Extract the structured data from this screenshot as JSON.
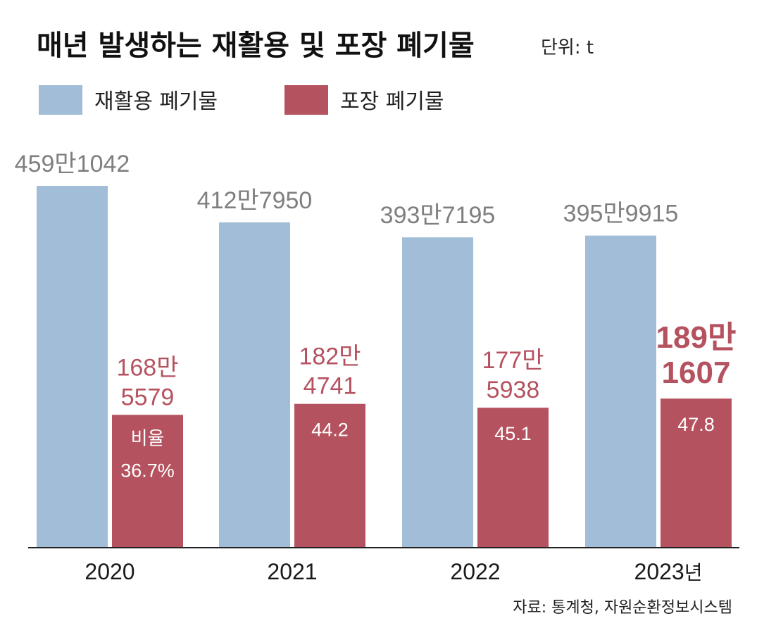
{
  "header": {
    "title": "매년 발생하는 재활용 및 포장 폐기물",
    "unit": "단위: t"
  },
  "colors": {
    "recycle": "#a1bdd7",
    "packaging": "#b5525f",
    "recycle_label": "#7f7f7f",
    "axis": "#222222"
  },
  "chart_data": {
    "type": "bar",
    "title": "매년 발생하는 재활용 및 포장 폐기물",
    "unit_label": "단위: t",
    "categories": [
      "2020",
      "2021",
      "2022",
      "2023"
    ],
    "category_suffix_last": "년",
    "ylim": [
      0,
      5000000
    ],
    "series": [
      {
        "name": "재활용 폐기물",
        "values": [
          4591042,
          4127950,
          3937195,
          3959915
        ],
        "labels": [
          "459만1042",
          "412만7950",
          "393만7195",
          "395만9915"
        ]
      },
      {
        "name": "포장 폐기물",
        "values": [
          1685579,
          1824741,
          1775938,
          1891607
        ],
        "labels": [
          [
            "168만",
            "5579"
          ],
          [
            "182만",
            "4741"
          ],
          [
            "177만",
            "5938"
          ],
          [
            "189만",
            "1607"
          ]
        ]
      }
    ],
    "ratio_title": "비율",
    "ratio_values": [
      "36.7%",
      "44.2",
      "45.1",
      "47.8"
    ],
    "highlight_index": 3,
    "legend_placement": "top-left"
  },
  "footer": {
    "source": "자료: 통계청, 자원순환정보시스템"
  }
}
